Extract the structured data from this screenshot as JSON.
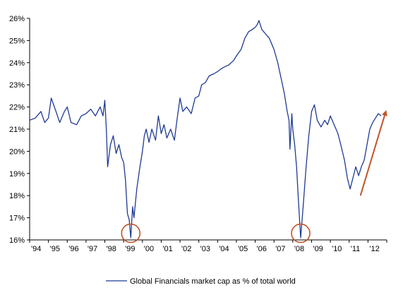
{
  "chart_data": {
    "type": "line",
    "title": "",
    "xlabel": "",
    "ylabel": "",
    "ylim": [
      16,
      26
    ],
    "y_ticks": [
      "16%",
      "17%",
      "18%",
      "19%",
      "20%",
      "21%",
      "22%",
      "23%",
      "24%",
      "25%",
      "26%"
    ],
    "x_range": [
      1994.0,
      2013.0
    ],
    "x_ticks": [
      "'94",
      "'95",
      "'96",
      "'97",
      "'98",
      "'99",
      "'00",
      "'01",
      "'02",
      "'03",
      "'04",
      "'05",
      "'06",
      "'07",
      "'08",
      "'09",
      "'10",
      "'11",
      "'12"
    ],
    "grid": false,
    "legend_position": "bottom",
    "series": [
      {
        "name": "Global Financials market cap as % of total world",
        "color": "#1f3a93",
        "points": [
          [
            1994.0,
            21.4
          ],
          [
            1994.3,
            21.5
          ],
          [
            1994.6,
            21.8
          ],
          [
            1994.8,
            21.3
          ],
          [
            1995.0,
            21.5
          ],
          [
            1995.15,
            22.4
          ],
          [
            1995.4,
            21.8
          ],
          [
            1995.6,
            21.3
          ],
          [
            1995.85,
            21.8
          ],
          [
            1996.0,
            22.0
          ],
          [
            1996.2,
            21.3
          ],
          [
            1996.5,
            21.2
          ],
          [
            1996.75,
            21.6
          ],
          [
            1997.0,
            21.7
          ],
          [
            1997.25,
            21.9
          ],
          [
            1997.5,
            21.6
          ],
          [
            1997.75,
            22.0
          ],
          [
            1997.9,
            21.6
          ],
          [
            1998.0,
            22.3
          ],
          [
            1998.08,
            21.0
          ],
          [
            1998.15,
            19.3
          ],
          [
            1998.3,
            20.3
          ],
          [
            1998.45,
            20.7
          ],
          [
            1998.6,
            19.9
          ],
          [
            1998.75,
            20.3
          ],
          [
            1998.9,
            19.7
          ],
          [
            1999.0,
            19.5
          ],
          [
            1999.1,
            18.7
          ],
          [
            1999.2,
            17.2
          ],
          [
            1999.3,
            16.9
          ],
          [
            1999.38,
            16.1
          ],
          [
            1999.48,
            17.5
          ],
          [
            1999.55,
            17.0
          ],
          [
            1999.7,
            18.3
          ],
          [
            1999.85,
            19.2
          ],
          [
            2000.0,
            20.0
          ],
          [
            2000.1,
            20.7
          ],
          [
            2000.2,
            21.0
          ],
          [
            2000.35,
            20.4
          ],
          [
            2000.5,
            21.0
          ],
          [
            2000.7,
            20.5
          ],
          [
            2000.85,
            21.6
          ],
          [
            2001.0,
            20.8
          ],
          [
            2001.15,
            21.2
          ],
          [
            2001.3,
            20.6
          ],
          [
            2001.5,
            21.0
          ],
          [
            2001.7,
            20.5
          ],
          [
            2001.85,
            21.5
          ],
          [
            2002.0,
            22.4
          ],
          [
            2002.15,
            21.8
          ],
          [
            2002.35,
            22.0
          ],
          [
            2002.6,
            21.7
          ],
          [
            2002.8,
            22.4
          ],
          [
            2003.0,
            22.5
          ],
          [
            2003.15,
            23.0
          ],
          [
            2003.35,
            23.1
          ],
          [
            2003.55,
            23.4
          ],
          [
            2003.8,
            23.5
          ],
          [
            2004.0,
            23.6
          ],
          [
            2004.15,
            23.7
          ],
          [
            2004.35,
            23.8
          ],
          [
            2004.6,
            23.9
          ],
          [
            2004.85,
            24.1
          ],
          [
            2005.0,
            24.3
          ],
          [
            2005.25,
            24.6
          ],
          [
            2005.45,
            25.1
          ],
          [
            2005.65,
            25.4
          ],
          [
            2005.85,
            25.5
          ],
          [
            2006.0,
            25.6
          ],
          [
            2006.1,
            25.7
          ],
          [
            2006.2,
            25.9
          ],
          [
            2006.35,
            25.5
          ],
          [
            2006.55,
            25.3
          ],
          [
            2006.75,
            25.1
          ],
          [
            2007.0,
            24.6
          ],
          [
            2007.2,
            24.0
          ],
          [
            2007.4,
            23.2
          ],
          [
            2007.55,
            22.6
          ],
          [
            2007.7,
            21.8
          ],
          [
            2007.8,
            21.4
          ],
          [
            2007.85,
            20.1
          ],
          [
            2007.95,
            21.7
          ],
          [
            2008.0,
            21.0
          ],
          [
            2008.1,
            20.3
          ],
          [
            2008.2,
            19.3
          ],
          [
            2008.3,
            17.8
          ],
          [
            2008.42,
            16.1
          ],
          [
            2008.55,
            17.5
          ],
          [
            2008.7,
            19.2
          ],
          [
            2008.85,
            20.7
          ],
          [
            2009.0,
            21.8
          ],
          [
            2009.15,
            22.1
          ],
          [
            2009.3,
            21.4
          ],
          [
            2009.5,
            21.1
          ],
          [
            2009.7,
            21.4
          ],
          [
            2009.85,
            21.2
          ],
          [
            2010.0,
            21.6
          ],
          [
            2010.2,
            21.2
          ],
          [
            2010.4,
            20.8
          ],
          [
            2010.55,
            20.3
          ],
          [
            2010.75,
            19.6
          ],
          [
            2010.9,
            18.8
          ],
          [
            2011.05,
            18.3
          ],
          [
            2011.2,
            18.8
          ],
          [
            2011.35,
            19.3
          ],
          [
            2011.5,
            18.9
          ],
          [
            2011.65,
            19.3
          ],
          [
            2011.8,
            19.6
          ],
          [
            2011.95,
            20.3
          ],
          [
            2012.1,
            21.0
          ],
          [
            2012.25,
            21.3
          ],
          [
            2012.4,
            21.5
          ],
          [
            2012.55,
            21.7
          ],
          [
            2012.7,
            21.6
          ]
        ]
      }
    ],
    "annotations": [
      {
        "type": "circle",
        "x": 1999.38,
        "y": 16.3,
        "color": "#c0542a"
      },
      {
        "type": "circle",
        "x": 2008.42,
        "y": 16.3,
        "color": "#c0542a"
      },
      {
        "type": "arrow",
        "from": [
          2011.6,
          18.0
        ],
        "to": [
          2012.95,
          21.8
        ],
        "color": "#c0542a"
      }
    ]
  }
}
